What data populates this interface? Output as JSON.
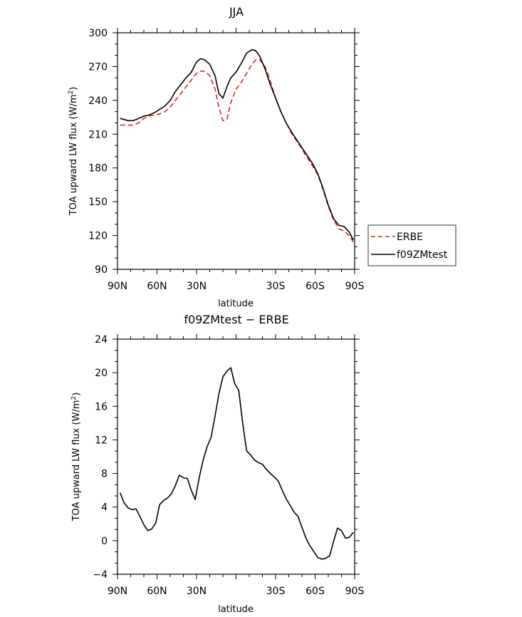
{
  "chart_data": [
    {
      "type": "line",
      "title": "JJA",
      "xlabel": "latitude",
      "ylabel": "TOA upward LW flux (W/m",
      "ylabel_sup": "2",
      "ylabel_close": ")",
      "xlim": [
        90,
        -90
      ],
      "ylim": [
        90,
        300
      ],
      "xticks": [
        90,
        60,
        30,
        0,
        -30,
        -60,
        -90
      ],
      "xticklabels": [
        "90N",
        "60N",
        "30N",
        "",
        "30S",
        "60S",
        "90S"
      ],
      "yticks": [
        90,
        120,
        150,
        180,
        210,
        240,
        270,
        300
      ],
      "yticklabels": [
        "90",
        "120",
        "150",
        "180",
        "210",
        "240",
        "270",
        "300"
      ],
      "legend_position": "right",
      "series": [
        {
          "name": "ERBE",
          "color": "#e8211c",
          "dash": "dashed",
          "x": [
            88,
            85,
            82,
            78,
            74,
            70,
            66,
            62,
            58,
            54,
            50,
            46,
            42,
            38,
            34,
            30,
            27,
            24,
            20,
            16,
            13,
            10,
            7,
            4,
            0,
            -4,
            -8,
            -12,
            -15,
            -18,
            -22,
            -26,
            -30,
            -34,
            -38,
            -42,
            -46,
            -50,
            -54,
            -58,
            -62,
            -66,
            -70,
            -74,
            -78,
            -82,
            -86,
            -89
          ],
          "y": [
            218,
            218,
            218,
            218,
            220,
            224,
            226,
            227,
            228,
            230,
            234,
            240,
            246,
            252,
            258,
            264,
            266,
            266,
            262,
            250,
            234,
            222,
            223,
            238,
            250,
            256,
            264,
            272,
            276,
            276,
            270,
            257,
            242,
            230,
            220,
            211,
            204,
            197,
            189,
            182,
            174,
            161,
            146,
            134,
            126,
            124,
            120,
            114
          ]
        },
        {
          "name": "f09ZMtest",
          "color": "#000000",
          "dash": "solid",
          "x": [
            88,
            85,
            82,
            78,
            74,
            70,
            66,
            62,
            58,
            54,
            50,
            46,
            42,
            38,
            34,
            30,
            27,
            24,
            20,
            16,
            13,
            10,
            7,
            4,
            0,
            -4,
            -8,
            -12,
            -15,
            -18,
            -22,
            -26,
            -30,
            -34,
            -38,
            -42,
            -46,
            -50,
            -54,
            -58,
            -62,
            -66,
            -70,
            -74,
            -78,
            -82,
            -86,
            -89
          ],
          "y": [
            224,
            223,
            222,
            222,
            224,
            226,
            227,
            229,
            232,
            235,
            240,
            248,
            254,
            260,
            265,
            274,
            277,
            276,
            272,
            262,
            246,
            242,
            252,
            260,
            265,
            273,
            282,
            285,
            284,
            279,
            268,
            254,
            242,
            230,
            220,
            212,
            205,
            198,
            191,
            184,
            175,
            162,
            147,
            135,
            129,
            128,
            123,
            116
          ]
        }
      ]
    },
    {
      "type": "line",
      "title": "f09ZMtest − ERBE",
      "xlabel": "latitude",
      "ylabel": "TOA upward LW flux (W/m",
      "ylabel_sup": "2",
      "ylabel_close": ")",
      "xlim": [
        90,
        -90
      ],
      "ylim": [
        -4,
        24
      ],
      "xticks": [
        90,
        60,
        30,
        0,
        -30,
        -60,
        -90
      ],
      "xticklabels": [
        "90N",
        "60N",
        "30N",
        "",
        "30S",
        "60S",
        "90S"
      ],
      "yticks": [
        -4,
        0,
        4,
        8,
        12,
        16,
        20,
        24
      ],
      "yticklabels": [
        "−4",
        "0",
        "4",
        "8",
        "12",
        "16",
        "20",
        "24"
      ],
      "series": [
        {
          "color": "#000000",
          "dash": "solid",
          "x": [
            88,
            85,
            82,
            79,
            76,
            73,
            70,
            67,
            64,
            61,
            58,
            55,
            52,
            49,
            46,
            43,
            40,
            37,
            34,
            31,
            28,
            25,
            22,
            19,
            16,
            13,
            10,
            7,
            4,
            1,
            -2,
            -5,
            -8,
            -11,
            -14,
            -17,
            -20,
            -23,
            -26,
            -29,
            -32,
            -35,
            -38,
            -41,
            -44,
            -47,
            -50,
            -53,
            -56,
            -59,
            -62,
            -65,
            -68,
            -71,
            -74,
            -77,
            -80,
            -83,
            -86,
            -89
          ],
          "y": [
            5.7,
            4.5,
            3.9,
            3.7,
            3.8,
            2.9,
            1.9,
            1.2,
            1.4,
            2.1,
            4.3,
            4.8,
            5.1,
            5.6,
            6.6,
            7.8,
            7.5,
            7.4,
            6.0,
            4.9,
            7.5,
            9.6,
            11.2,
            12.3,
            14.8,
            17.5,
            19.5,
            20.2,
            20.6,
            18.7,
            17.9,
            14.0,
            10.7,
            10.2,
            9.6,
            9.3,
            9.1,
            8.5,
            8.0,
            7.6,
            7.1,
            6.0,
            5.0,
            4.2,
            3.4,
            2.9,
            1.6,
            0.3,
            -0.6,
            -1.3,
            -2.0,
            -2.2,
            -2.1,
            -1.8,
            -0.1,
            1.5,
            1.2,
            0.3,
            0.4,
            1.0
          ]
        }
      ]
    }
  ]
}
